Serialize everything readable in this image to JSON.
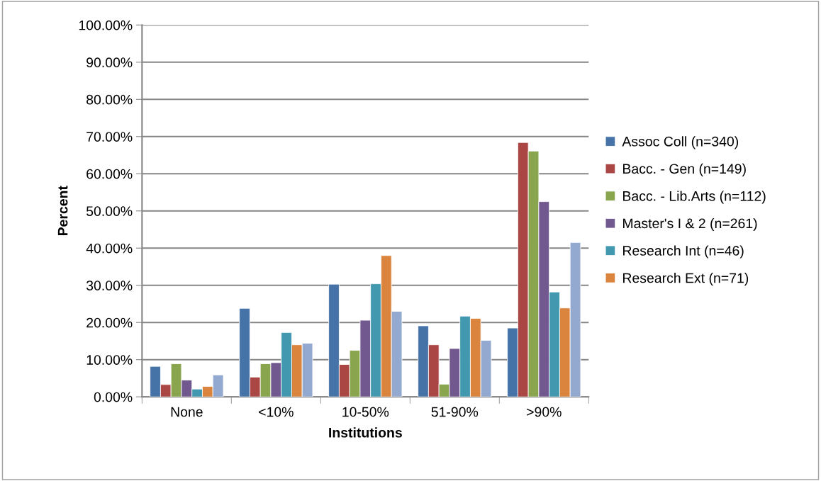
{
  "chart_data": {
    "type": "bar",
    "xlabel": "Institutions",
    "ylabel": "Percent",
    "categories": [
      "None",
      "<10%",
      "10-50%",
      "51-90%",
      ">90%"
    ],
    "series": [
      {
        "name": "Assoc Coll (n=340)",
        "color": "#4572a7",
        "values": [
          8.2,
          23.8,
          30.3,
          19.1,
          18.5
        ]
      },
      {
        "name": "Bacc. - Gen (n=149)",
        "color": "#aa4643",
        "values": [
          3.3,
          5.3,
          8.7,
          14.0,
          68.4
        ]
      },
      {
        "name": "Bacc. - Lib.Arts (n=112)",
        "color": "#89a54e",
        "values": [
          8.9,
          8.9,
          12.5,
          3.4,
          66.1
        ]
      },
      {
        "name": "Master's I & 2 (n=261)",
        "color": "#71588f",
        "values": [
          4.5,
          9.2,
          20.6,
          13.0,
          52.5
        ]
      },
      {
        "name": "Research Int (n=46)",
        "color": "#4198af",
        "values": [
          2.1,
          17.3,
          30.4,
          21.7,
          28.2
        ]
      },
      {
        "name": "Research Ext (n=71)",
        "color": "#db843d",
        "values": [
          2.8,
          14.0,
          38.0,
          21.1,
          23.9
        ]
      },
      {
        "color": "#93a9cf",
        "values": [
          5.9,
          14.4,
          23.0,
          15.2,
          41.5
        ]
      }
    ],
    "ylim": [
      0,
      100
    ],
    "yticks": [
      {
        "value": 0,
        "label": "0.00%"
      },
      {
        "value": 10,
        "label": "10.00%"
      },
      {
        "value": 20,
        "label": "20.00%"
      },
      {
        "value": 30,
        "label": "30.00%"
      },
      {
        "value": 40,
        "label": "40.00%"
      },
      {
        "value": 50,
        "label": "50.00%"
      },
      {
        "value": 60,
        "label": "60.00%"
      },
      {
        "value": 70,
        "label": "70.00%"
      },
      {
        "value": 80,
        "label": "80.00%"
      },
      {
        "value": 90,
        "label": "90.00%"
      },
      {
        "value": 100,
        "label": "100.00%"
      }
    ],
    "grid": "y",
    "legend": "right"
  }
}
